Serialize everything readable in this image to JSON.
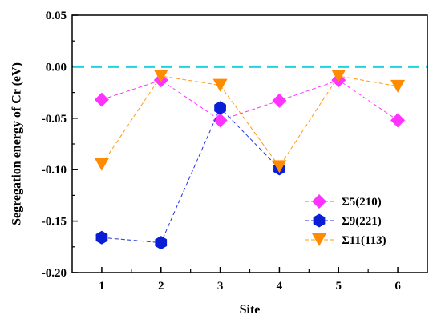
{
  "chart_data": {
    "type": "line",
    "title": "",
    "xlabel": "Site",
    "ylabel": "Segregation energy of Cr (eV)",
    "x": [
      1,
      2,
      3,
      4,
      5,
      6
    ],
    "xlim": [
      0.5,
      6.5
    ],
    "ylim": [
      -0.2,
      0.05
    ],
    "x_ticks": [
      1,
      2,
      3,
      4,
      5,
      6
    ],
    "x_tick_labels": [
      "1",
      "2",
      "3",
      "4",
      "5",
      "6"
    ],
    "y_ticks": [
      -0.2,
      -0.15,
      -0.1,
      -0.05,
      0.0,
      0.05
    ],
    "y_tick_labels": [
      "-0.20",
      "-0.15",
      "-0.10",
      "-0.05",
      "0.00",
      "0.05"
    ],
    "grid": false,
    "legend_position": "bottom-right",
    "reference_line": {
      "y": 0.0,
      "style": "dashed",
      "color": "#22d3df"
    },
    "series": [
      {
        "name": "Σ5(210)",
        "marker": "diamond",
        "color": "#ff33ff",
        "line_color": "#ff33ff",
        "values": [
          -0.032,
          -0.013,
          -0.052,
          -0.033,
          -0.013,
          -0.052
        ]
      },
      {
        "name": "Σ9(221)",
        "marker": "hexagon",
        "color": "#0a1ed6",
        "line_color": "#2233dd",
        "values": [
          -0.166,
          -0.171,
          -0.04,
          -0.099,
          null,
          null
        ]
      },
      {
        "name": "Σ11(113)",
        "marker": "triangle-down",
        "color": "#ff8c00",
        "line_color": "#ff9a1a",
        "values": [
          -0.095,
          -0.009,
          -0.018,
          -0.097,
          -0.009,
          -0.019
        ]
      }
    ]
  }
}
